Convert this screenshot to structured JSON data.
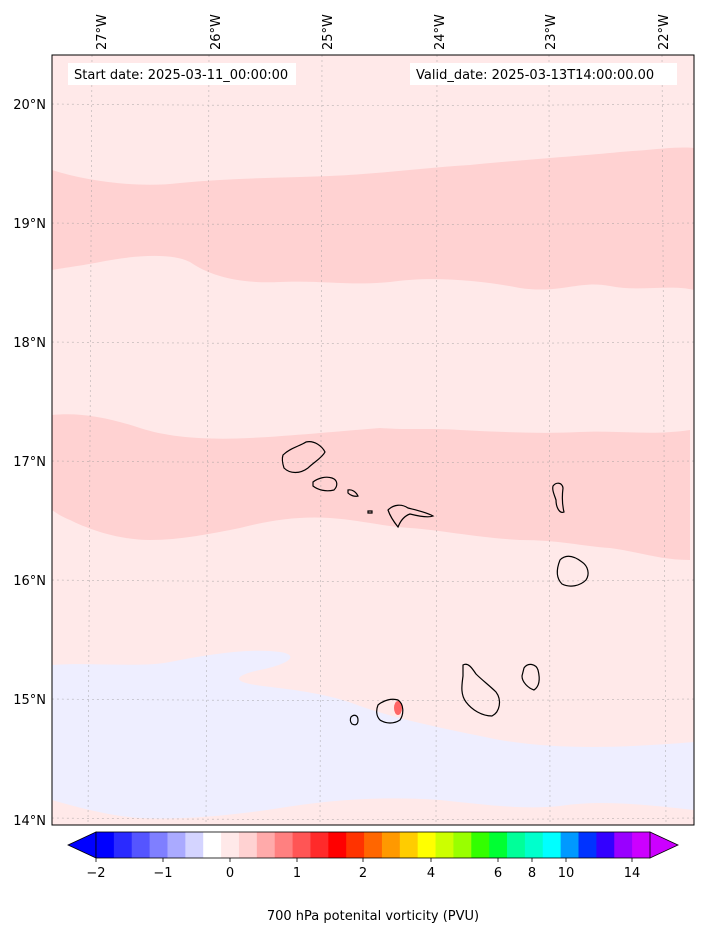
{
  "header": {
    "start_date": "Start date: 2025-03-11_00:00:00",
    "valid_date": "Valid_date: 2025-03-13T14:00:00.00"
  },
  "axes": {
    "lon_labels": [
      "27°W",
      "26°W",
      "25°W",
      "24°W",
      "23°W",
      "22°W"
    ],
    "lat_labels": [
      "20°N",
      "19°N",
      "18°N",
      "17°N",
      "16°N",
      "15°N",
      "14°N"
    ],
    "gridlines": true
  },
  "colorbar": {
    "title": "700 hPa potenital vorticity (PVU)",
    "tick_labels": [
      "−2",
      "−1",
      "0",
      "1",
      "2",
      "4",
      "6",
      "8",
      "10",
      "14"
    ],
    "colors": [
      "#0000ff",
      "#2a2aff",
      "#5555ff",
      "#7f7fff",
      "#aaaaff",
      "#d4d4ff",
      "#ffffff",
      "#ffe9e9",
      "#ffd2d2",
      "#ffaaaa",
      "#ff8080",
      "#ff5555",
      "#ff2a2a",
      "#ff0000",
      "#ff3300",
      "#ff6600",
      "#ff9900",
      "#ffcc00",
      "#ffff00",
      "#ccff00",
      "#99ff00",
      "#33ff00",
      "#00ff33",
      "#00ff99",
      "#00ffcc",
      "#00ffff",
      "#0099ff",
      "#0033ff",
      "#3300ff",
      "#9900ff",
      "#cc00ff"
    ],
    "extend": "both"
  },
  "field_colors": {
    "background": "#ffe9e9",
    "band": "#ffd2d2",
    "negative": "#eeeeff",
    "peak": "#ff6666",
    "coastline": "#000000"
  }
}
